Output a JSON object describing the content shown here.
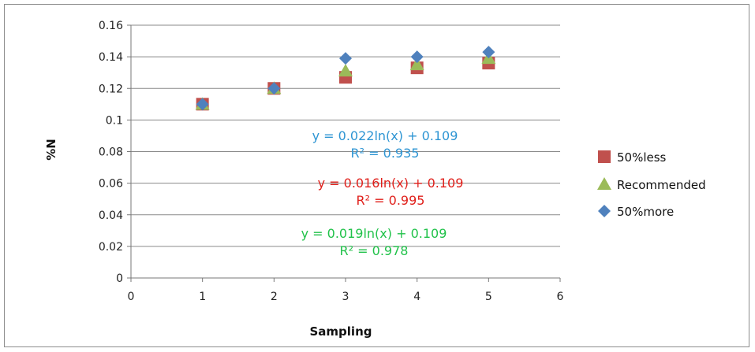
{
  "chart_data": {
    "type": "scatter",
    "xlabel": "Sampling",
    "ylabel": "%N",
    "xlim": [
      0,
      6
    ],
    "ylim": [
      0,
      0.16
    ],
    "x_ticks": [
      "0",
      "1",
      "2",
      "3",
      "4",
      "5",
      "6"
    ],
    "y_ticks": [
      "0",
      "0.02",
      "0.04",
      "0.06",
      "0.08",
      "0.1",
      "0.12",
      "0.14",
      "0.16"
    ],
    "grid": "horizontal",
    "legend_position": "right",
    "series": [
      {
        "name": "50%less",
        "marker": "square",
        "color": "#c0504d",
        "x": [
          1,
          2,
          3,
          4,
          5
        ],
        "y": [
          0.11,
          0.12,
          0.127,
          0.133,
          0.136
        ],
        "trendline": "y = 0.016ln(x) + 0.109",
        "r2": "R² = 0.995"
      },
      {
        "name": "Recommended",
        "marker": "triangle",
        "color": "#9bbb59",
        "x": [
          1,
          2,
          3,
          4,
          5
        ],
        "y": [
          0.11,
          0.12,
          0.131,
          0.135,
          0.139
        ],
        "trendline": "y = 0.019ln(x) + 0.109",
        "r2": "R² = 0.978"
      },
      {
        "name": "50%more",
        "marker": "diamond",
        "color": "#4f81bd",
        "x": [
          1,
          2,
          3,
          4,
          5
        ],
        "y": [
          0.11,
          0.12,
          0.139,
          0.14,
          0.143
        ],
        "trendline": "y = 0.022ln(x) + 0.109",
        "r2": "R² = 0.935"
      }
    ],
    "annotation_colors": {
      "50%more": "#2e95d3",
      "50%less": "#e0201b",
      "Recommended": "#21c24a"
    }
  }
}
